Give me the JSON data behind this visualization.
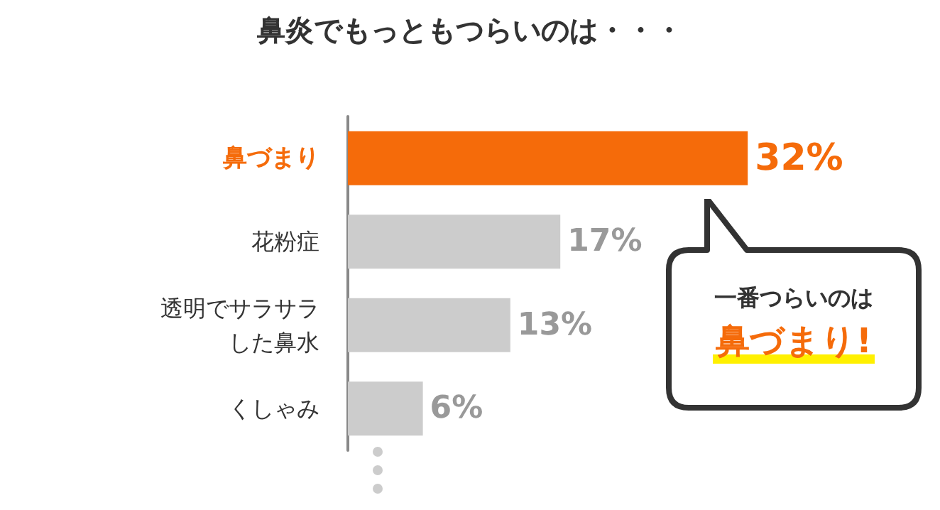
{
  "chart_data": {
    "type": "bar",
    "orientation": "horizontal",
    "title": "鼻炎でもっともつらいのは・・・",
    "categories": [
      "鼻づまり",
      "花粉症",
      "透明でサラサラした鼻水",
      "くしゃみ"
    ],
    "values": [
      32,
      17,
      13,
      6
    ],
    "colors": [
      "#f56b0a",
      "#cccccc",
      "#cccccc",
      "#cccccc"
    ],
    "value_labels": [
      "32%",
      "17%",
      "13%",
      "6%"
    ],
    "annotations": [
      "一番つらいのは",
      "鼻づまり!"
    ]
  }
}
